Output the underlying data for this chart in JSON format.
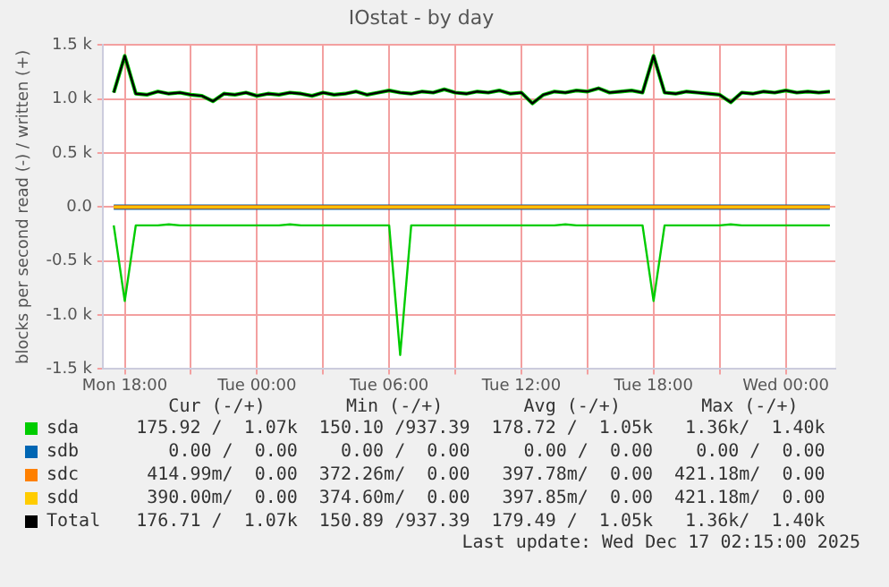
{
  "chart_data": {
    "type": "line",
    "title": "IOstat - by day",
    "ylabel": "blocks per second read (-) / written (+)",
    "x": [
      "2025-12-15T17:30",
      "2025-12-15T18:00",
      "2025-12-15T18:30",
      "2025-12-15T19:00",
      "2025-12-15T19:30",
      "2025-12-15T20:00",
      "2025-12-15T20:30",
      "2025-12-15T21:00",
      "2025-12-15T21:30",
      "2025-12-15T22:00",
      "2025-12-15T22:30",
      "2025-12-15T23:00",
      "2025-12-15T23:30",
      "2025-12-16T00:00",
      "2025-12-16T00:30",
      "2025-12-16T01:00",
      "2025-12-16T01:30",
      "2025-12-16T02:00",
      "2025-12-16T02:30",
      "2025-12-16T03:00",
      "2025-12-16T03:30",
      "2025-12-16T04:00",
      "2025-12-16T04:30",
      "2025-12-16T05:00",
      "2025-12-16T05:30",
      "2025-12-16T06:00",
      "2025-12-16T06:30",
      "2025-12-16T07:00",
      "2025-12-16T07:30",
      "2025-12-16T08:00",
      "2025-12-16T08:30",
      "2025-12-16T09:00",
      "2025-12-16T09:30",
      "2025-12-16T10:00",
      "2025-12-16T10:30",
      "2025-12-16T11:00",
      "2025-12-16T11:30",
      "2025-12-16T12:00",
      "2025-12-16T12:30",
      "2025-12-16T13:00",
      "2025-12-16T13:30",
      "2025-12-16T14:00",
      "2025-12-16T14:30",
      "2025-12-16T15:00",
      "2025-12-16T15:30",
      "2025-12-16T16:00",
      "2025-12-16T16:30",
      "2025-12-16T17:00",
      "2025-12-16T17:30",
      "2025-12-16T18:00",
      "2025-12-16T18:30",
      "2025-12-16T19:00",
      "2025-12-16T19:30",
      "2025-12-16T20:00",
      "2025-12-16T20:30",
      "2025-12-16T21:00",
      "2025-12-16T21:30",
      "2025-12-16T22:00",
      "2025-12-16T22:30",
      "2025-12-16T23:00",
      "2025-12-16T23:30",
      "2025-12-17T00:00",
      "2025-12-17T00:30",
      "2025-12-17T01:00",
      "2025-12-17T01:30",
      "2025-12-17T02:00"
    ],
    "series": [
      {
        "name": "sda",
        "color": "#00cc00",
        "values": [
          1060,
          1400,
          1050,
          1040,
          1070,
          1050,
          1060,
          1040,
          1030,
          980,
          1050,
          1040,
          1060,
          1030,
          1050,
          1040,
          1060,
          1050,
          1030,
          1060,
          1040,
          1050,
          1070,
          1040,
          1060,
          1080,
          1060,
          1050,
          1070,
          1060,
          1090,
          1060,
          1050,
          1070,
          1060,
          1080,
          1050,
          1060,
          960,
          1040,
          1070,
          1060,
          1080,
          1070,
          1100,
          1060,
          1070,
          1080,
          1060,
          1400,
          1060,
          1050,
          1070,
          1060,
          1050,
          1040,
          970,
          1060,
          1050,
          1070,
          1060,
          1080,
          1060,
          1070,
          1060,
          1070
        ]
      },
      {
        "color": "#00cc00",
        "values": [
          -170,
          -870,
          -170,
          -170,
          -170,
          -160,
          -170,
          -170,
          -170,
          -170,
          -170,
          -170,
          -170,
          -170,
          -170,
          -170,
          -160,
          -170,
          -170,
          -170,
          -170,
          -170,
          -170,
          -170,
          -170,
          -170,
          -1370,
          -170,
          -170,
          -170,
          -170,
          -170,
          -170,
          -170,
          -170,
          -170,
          -170,
          -170,
          -170,
          -170,
          -170,
          -160,
          -170,
          -170,
          -170,
          -170,
          -170,
          -170,
          -170,
          -870,
          -170,
          -170,
          -170,
          -170,
          -170,
          -170,
          -160,
          -170,
          -170,
          -170,
          -170,
          -170,
          -170,
          -170,
          -170,
          -170
        ]
      },
      {
        "name": "sdb",
        "color": "#0066b3",
        "x": [
          "2025-12-15T17:30",
          "2025-12-17T02:00"
        ],
        "values": [
          0,
          0
        ]
      },
      {
        "name": "sdc",
        "color": "#ff8000",
        "x": [
          "2025-12-15T17:30",
          "2025-12-17T02:00"
        ],
        "values": [
          0,
          0
        ]
      },
      {
        "name": "sdd",
        "color": "#ffcc00",
        "x": [
          "2025-12-15T17:30",
          "2025-12-17T02:00"
        ],
        "values": [
          0,
          0
        ]
      },
      {
        "name": "Total",
        "color": "#000000",
        "values": [
          1060,
          1400,
          1050,
          1040,
          1070,
          1050,
          1060,
          1040,
          1030,
          980,
          1050,
          1040,
          1060,
          1030,
          1050,
          1040,
          1060,
          1050,
          1030,
          1060,
          1040,
          1050,
          1070,
          1040,
          1060,
          1080,
          1060,
          1050,
          1070,
          1060,
          1090,
          1060,
          1050,
          1070,
          1060,
          1080,
          1050,
          1060,
          960,
          1040,
          1070,
          1060,
          1080,
          1070,
          1100,
          1060,
          1070,
          1080,
          1060,
          1400,
          1060,
          1050,
          1070,
          1060,
          1050,
          1040,
          970,
          1060,
          1050,
          1070,
          1060,
          1080,
          1060,
          1070,
          1060,
          1070
        ]
      }
    ],
    "xlim": [
      "2025-12-15T17:00",
      "2025-12-17T02:15"
    ],
    "xticks": [
      {
        "value": "2025-12-15T18:00",
        "label": "Mon 18:00"
      },
      {
        "value": "2025-12-15T21:00",
        "label": null
      },
      {
        "value": "2025-12-16T00:00",
        "label": "Tue 00:00"
      },
      {
        "value": "2025-12-16T03:00",
        "label": null
      },
      {
        "value": "2025-12-16T06:00",
        "label": "Tue 06:00"
      },
      {
        "value": "2025-12-16T09:00",
        "label": null
      },
      {
        "value": "2025-12-16T12:00",
        "label": "Tue 12:00"
      },
      {
        "value": "2025-12-16T15:00",
        "label": null
      },
      {
        "value": "2025-12-16T18:00",
        "label": "Tue 18:00"
      },
      {
        "value": "2025-12-16T21:00",
        "label": null
      },
      {
        "value": "2025-12-17T00:00",
        "label": "Wed 00:00"
      }
    ],
    "ylim": [
      -1500,
      1500
    ],
    "yticks": [
      {
        "value": -1500,
        "label": "-1.5 k"
      },
      {
        "value": -1000,
        "label": "-1.0 k"
      },
      {
        "value": -500,
        "label": "-0.5 k"
      },
      {
        "value": 0,
        "label": "0.0"
      },
      {
        "value": 500,
        "label": "0.5 k"
      },
      {
        "value": 1000,
        "label": "1.0 k"
      },
      {
        "value": 1500,
        "label": "1.5 k"
      }
    ],
    "grid": true,
    "legend": "bottom",
    "marker": "none",
    "line_style": "solid",
    "annotations": [
      "Cur (-/+)",
      "Min (-/+)",
      "Avg (-/+)",
      "Max (-/+)",
      "175.92 /  1.07k",
      "150.10 /937.39",
      "178.72 /  1.05k",
      "1.36k/  1.40k",
      "0.00 /  0.00",
      "0.00 /  0.00",
      "0.00 /  0.00",
      "0.00 /  0.00",
      "414.99m/  0.00",
      "372.26m/  0.00",
      "397.78m/  0.00",
      "421.18m/  0.00",
      "390.00m/  0.00",
      "374.60m/  0.00",
      "397.85m/  0.00",
      "421.18m/  0.00",
      "176.71 /  1.07k",
      "150.89 /937.39",
      "179.49 /  1.05k",
      "1.36k/  1.40k",
      "Last update: Wed Dec 17 02:15:00 2025"
    ]
  }
}
